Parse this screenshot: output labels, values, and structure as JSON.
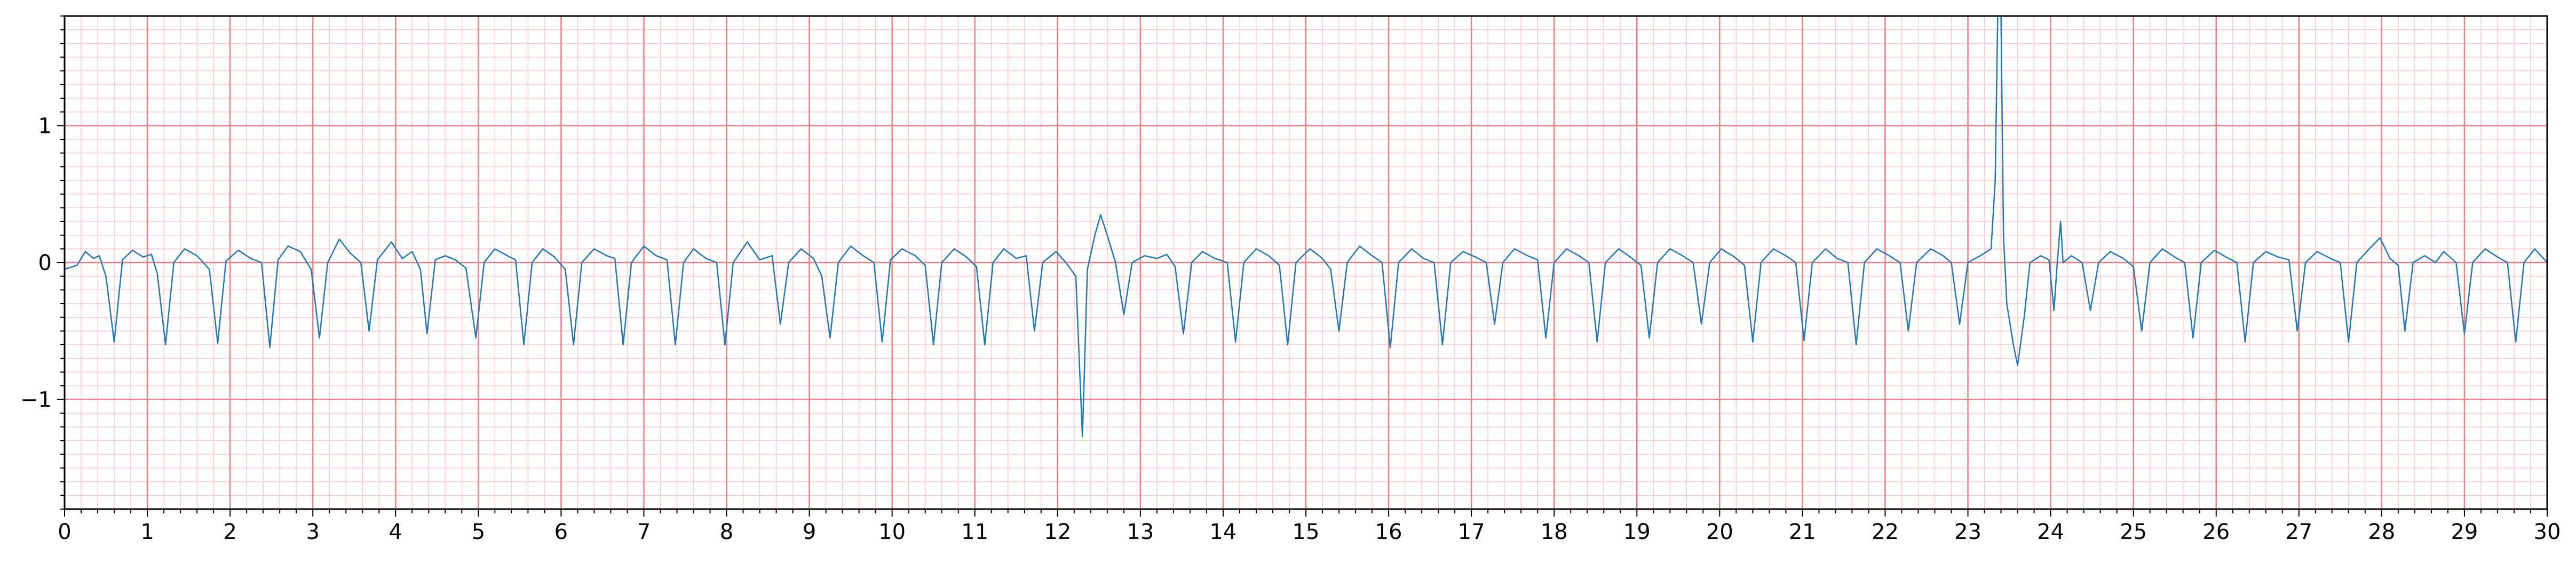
{
  "chart_data": {
    "type": "line",
    "title": "",
    "xlabel": "",
    "ylabel": "",
    "xlim": [
      0,
      30
    ],
    "ylim": [
      -1.8,
      1.8
    ],
    "grid": true,
    "x_ticks": [
      "0",
      "1",
      "2",
      "3",
      "4",
      "5",
      "6",
      "7",
      "8",
      "9",
      "10",
      "11",
      "12",
      "13",
      "14",
      "15",
      "16",
      "17",
      "18",
      "19",
      "20",
      "21",
      "22",
      "23",
      "24",
      "25",
      "26",
      "27",
      "28",
      "29",
      "30"
    ],
    "y_ticks": [
      {
        "value": 1,
        "label": "1"
      },
      {
        "value": 0,
        "label": "0"
      },
      {
        "value": -1,
        "label": "−1"
      }
    ],
    "colors": {
      "series": "#1f77b4",
      "major_grid": "#f08080",
      "minor_grid": "#ffc8c8",
      "axes": "#000000"
    },
    "series": [
      {
        "values": [
          [
            0,
            -0.05
          ],
          [
            0.15,
            -0.02
          ],
          [
            0.25,
            0.08
          ],
          [
            0.35,
            0.03
          ],
          [
            0.42,
            0.05
          ],
          [
            0.5,
            -0.1
          ],
          [
            0.6,
            -0.58
          ],
          [
            0.7,
            0.02
          ],
          [
            0.82,
            0.09
          ],
          [
            0.95,
            0.04
          ],
          [
            1.05,
            0.06
          ],
          [
            1.12,
            -0.08
          ],
          [
            1.22,
            -0.6
          ],
          [
            1.32,
            0.0
          ],
          [
            1.45,
            0.1
          ],
          [
            1.6,
            0.05
          ],
          [
            1.75,
            -0.05
          ],
          [
            1.85,
            -0.59
          ],
          [
            1.95,
            0.01
          ],
          [
            2.1,
            0.09
          ],
          [
            2.25,
            0.03
          ],
          [
            2.38,
            0.0
          ],
          [
            2.48,
            -0.62
          ],
          [
            2.58,
            0.02
          ],
          [
            2.7,
            0.12
          ],
          [
            2.85,
            0.08
          ],
          [
            2.98,
            -0.05
          ],
          [
            3.08,
            -0.55
          ],
          [
            3.18,
            0.0
          ],
          [
            3.32,
            0.17
          ],
          [
            3.45,
            0.07
          ],
          [
            3.58,
            0.0
          ],
          [
            3.68,
            -0.5
          ],
          [
            3.78,
            0.02
          ],
          [
            3.95,
            0.15
          ],
          [
            4.08,
            0.03
          ],
          [
            4.2,
            0.08
          ],
          [
            4.3,
            -0.05
          ],
          [
            4.38,
            -0.52
          ],
          [
            4.48,
            0.02
          ],
          [
            4.6,
            0.05
          ],
          [
            4.72,
            0.02
          ],
          [
            4.85,
            -0.04
          ],
          [
            4.97,
            -0.55
          ],
          [
            5.07,
            0.0
          ],
          [
            5.2,
            0.1
          ],
          [
            5.35,
            0.05
          ],
          [
            5.45,
            0.02
          ],
          [
            5.55,
            -0.6
          ],
          [
            5.65,
            0.0
          ],
          [
            5.78,
            0.1
          ],
          [
            5.92,
            0.04
          ],
          [
            6.05,
            -0.05
          ],
          [
            6.15,
            -0.6
          ],
          [
            6.25,
            0.0
          ],
          [
            6.4,
            0.1
          ],
          [
            6.55,
            0.05
          ],
          [
            6.65,
            0.03
          ],
          [
            6.75,
            -0.6
          ],
          [
            6.85,
            0.0
          ],
          [
            7.0,
            0.12
          ],
          [
            7.15,
            0.05
          ],
          [
            7.28,
            0.02
          ],
          [
            7.38,
            -0.6
          ],
          [
            7.48,
            0.0
          ],
          [
            7.6,
            0.1
          ],
          [
            7.75,
            0.03
          ],
          [
            7.88,
            0.0
          ],
          [
            7.98,
            -0.6
          ],
          [
            8.08,
            0.0
          ],
          [
            8.25,
            0.15
          ],
          [
            8.4,
            0.02
          ],
          [
            8.55,
            0.05
          ],
          [
            8.65,
            -0.45
          ],
          [
            8.75,
            0.0
          ],
          [
            8.9,
            0.1
          ],
          [
            9.05,
            0.03
          ],
          [
            9.15,
            -0.1
          ],
          [
            9.25,
            -0.55
          ],
          [
            9.35,
            0.0
          ],
          [
            9.5,
            0.12
          ],
          [
            9.65,
            0.05
          ],
          [
            9.78,
            0.0
          ],
          [
            9.88,
            -0.58
          ],
          [
            9.98,
            0.02
          ],
          [
            10.12,
            0.1
          ],
          [
            10.28,
            0.05
          ],
          [
            10.4,
            -0.02
          ],
          [
            10.5,
            -0.6
          ],
          [
            10.6,
            0.0
          ],
          [
            10.75,
            0.1
          ],
          [
            10.9,
            0.04
          ],
          [
            11.02,
            -0.03
          ],
          [
            11.12,
            -0.6
          ],
          [
            11.22,
            0.0
          ],
          [
            11.35,
            0.1
          ],
          [
            11.5,
            0.03
          ],
          [
            11.62,
            0.05
          ],
          [
            11.72,
            -0.5
          ],
          [
            11.82,
            0.0
          ],
          [
            11.98,
            0.08
          ],
          [
            12.1,
            0.0
          ],
          [
            12.22,
            -0.1
          ],
          [
            12.3,
            -1.27
          ],
          [
            12.36,
            -0.05
          ],
          [
            12.45,
            0.2
          ],
          [
            12.52,
            0.35
          ],
          [
            12.6,
            0.2
          ],
          [
            12.7,
            0.0
          ],
          [
            12.8,
            -0.38
          ],
          [
            12.9,
            0.0
          ],
          [
            13.05,
            0.05
          ],
          [
            13.2,
            0.03
          ],
          [
            13.32,
            0.06
          ],
          [
            13.42,
            -0.03
          ],
          [
            13.52,
            -0.52
          ],
          [
            13.62,
            0.0
          ],
          [
            13.75,
            0.08
          ],
          [
            13.9,
            0.03
          ],
          [
            14.05,
            0.0
          ],
          [
            14.15,
            -0.58
          ],
          [
            14.25,
            0.0
          ],
          [
            14.4,
            0.1
          ],
          [
            14.55,
            0.05
          ],
          [
            14.68,
            -0.02
          ],
          [
            14.78,
            -0.6
          ],
          [
            14.88,
            0.0
          ],
          [
            15.05,
            0.1
          ],
          [
            15.2,
            0.03
          ],
          [
            15.3,
            -0.05
          ],
          [
            15.4,
            -0.5
          ],
          [
            15.5,
            0.0
          ],
          [
            15.65,
            0.12
          ],
          [
            15.8,
            0.05
          ],
          [
            15.92,
            0.0
          ],
          [
            16.02,
            -0.62
          ],
          [
            16.12,
            0.0
          ],
          [
            16.28,
            0.1
          ],
          [
            16.42,
            0.03
          ],
          [
            16.55,
            0.0
          ],
          [
            16.65,
            -0.6
          ],
          [
            16.75,
            0.0
          ],
          [
            16.9,
            0.08
          ],
          [
            17.05,
            0.04
          ],
          [
            17.18,
            0.0
          ],
          [
            17.28,
            -0.45
          ],
          [
            17.38,
            0.0
          ],
          [
            17.52,
            0.1
          ],
          [
            17.68,
            0.05
          ],
          [
            17.8,
            0.02
          ],
          [
            17.9,
            -0.55
          ],
          [
            18.0,
            0.0
          ],
          [
            18.15,
            0.1
          ],
          [
            18.3,
            0.05
          ],
          [
            18.42,
            0.0
          ],
          [
            18.52,
            -0.58
          ],
          [
            18.62,
            0.0
          ],
          [
            18.78,
            0.1
          ],
          [
            18.92,
            0.04
          ],
          [
            19.05,
            -0.02
          ],
          [
            19.15,
            -0.55
          ],
          [
            19.25,
            0.0
          ],
          [
            19.4,
            0.1
          ],
          [
            19.55,
            0.05
          ],
          [
            19.68,
            0.0
          ],
          [
            19.78,
            -0.45
          ],
          [
            19.88,
            0.0
          ],
          [
            20.02,
            0.1
          ],
          [
            20.18,
            0.04
          ],
          [
            20.3,
            -0.02
          ],
          [
            20.4,
            -0.58
          ],
          [
            20.5,
            0.0
          ],
          [
            20.65,
            0.1
          ],
          [
            20.8,
            0.05
          ],
          [
            20.92,
            0.0
          ],
          [
            21.02,
            -0.57
          ],
          [
            21.12,
            0.0
          ],
          [
            21.28,
            0.1
          ],
          [
            21.42,
            0.03
          ],
          [
            21.55,
            0.0
          ],
          [
            21.65,
            -0.6
          ],
          [
            21.75,
            0.0
          ],
          [
            21.9,
            0.1
          ],
          [
            22.05,
            0.05
          ],
          [
            22.18,
            0.0
          ],
          [
            22.28,
            -0.5
          ],
          [
            22.38,
            0.0
          ],
          [
            22.55,
            0.1
          ],
          [
            22.7,
            0.05
          ],
          [
            22.8,
            0.0
          ],
          [
            22.9,
            -0.45
          ],
          [
            23.0,
            0.0
          ],
          [
            23.15,
            0.05
          ],
          [
            23.28,
            0.1
          ],
          [
            23.33,
            0.6
          ],
          [
            23.36,
            1.8
          ],
          [
            23.4,
            1.8
          ],
          [
            23.43,
            0.2
          ],
          [
            23.47,
            -0.3
          ],
          [
            23.55,
            -0.6
          ],
          [
            23.6,
            -0.75
          ],
          [
            23.68,
            -0.4
          ],
          [
            23.75,
            0.0
          ],
          [
            23.88,
            0.05
          ],
          [
            23.98,
            0.02
          ],
          [
            24.04,
            -0.35
          ],
          [
            24.08,
            0.0
          ],
          [
            24.12,
            0.3
          ],
          [
            24.15,
            0.0
          ],
          [
            24.25,
            0.05
          ],
          [
            24.38,
            0.0
          ],
          [
            24.48,
            -0.35
          ],
          [
            24.58,
            0.0
          ],
          [
            24.72,
            0.08
          ],
          [
            24.88,
            0.03
          ],
          [
            25.0,
            -0.03
          ],
          [
            25.1,
            -0.5
          ],
          [
            25.2,
            0.0
          ],
          [
            25.35,
            0.1
          ],
          [
            25.5,
            0.04
          ],
          [
            25.62,
            0.0
          ],
          [
            25.72,
            -0.55
          ],
          [
            25.82,
            0.0
          ],
          [
            25.98,
            0.09
          ],
          [
            26.12,
            0.04
          ],
          [
            26.25,
            0.0
          ],
          [
            26.35,
            -0.58
          ],
          [
            26.45,
            0.0
          ],
          [
            26.6,
            0.08
          ],
          [
            26.75,
            0.04
          ],
          [
            26.88,
            0.02
          ],
          [
            26.98,
            -0.5
          ],
          [
            27.08,
            0.0
          ],
          [
            27.22,
            0.08
          ],
          [
            27.38,
            0.03
          ],
          [
            27.5,
            0.0
          ],
          [
            27.6,
            -0.58
          ],
          [
            27.7,
            0.0
          ],
          [
            27.85,
            0.1
          ],
          [
            27.98,
            0.18
          ],
          [
            28.1,
            0.03
          ],
          [
            28.2,
            -0.02
          ],
          [
            28.28,
            -0.5
          ],
          [
            28.38,
            0.0
          ],
          [
            28.52,
            0.05
          ],
          [
            28.65,
            0.0
          ],
          [
            28.75,
            0.08
          ],
          [
            28.9,
            0.0
          ],
          [
            29.0,
            -0.52
          ],
          [
            29.1,
            0.0
          ],
          [
            29.25,
            0.1
          ],
          [
            29.4,
            0.04
          ],
          [
            29.52,
            0.0
          ],
          [
            29.62,
            -0.58
          ],
          [
            29.72,
            0.0
          ],
          [
            29.85,
            0.1
          ],
          [
            30.0,
            0.0
          ]
        ]
      }
    ]
  }
}
